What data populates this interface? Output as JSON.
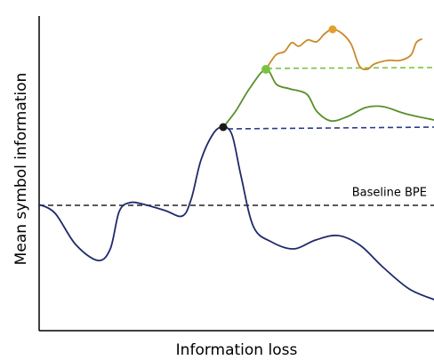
{
  "axes": {
    "y_label": "Mean symbol information",
    "x_label": "Information loss"
  },
  "annotations": {
    "baseline": "Baseline BPE"
  }
}
